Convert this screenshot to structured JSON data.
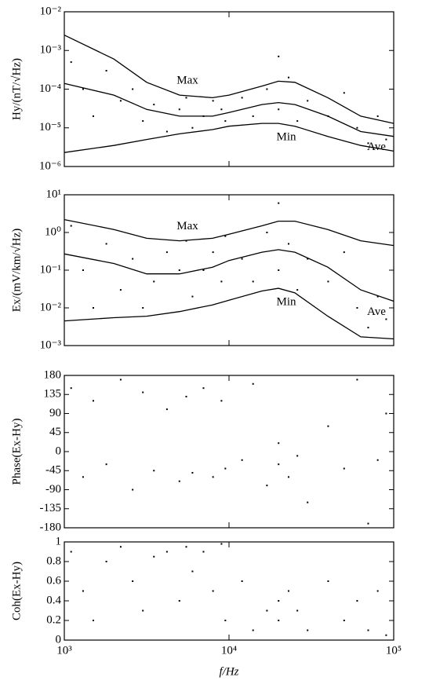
{
  "chart_data": [
    {
      "type": "line",
      "ylabel": "Hy/(nT/√Hz)",
      "log_x": true,
      "log_y": true,
      "xlim": [
        1000,
        100000
      ],
      "xticks": [
        1000,
        10000,
        100000
      ],
      "ylim": [
        1e-06,
        0.01
      ],
      "yticks": [
        {
          "value": 1e-06,
          "label": "10⁻⁶"
        },
        {
          "value": 1e-05,
          "label": "10⁻⁵"
        },
        {
          "value": 0.0001,
          "label": "10⁻⁴"
        },
        {
          "value": 0.001,
          "label": "10⁻³"
        },
        {
          "value": 0.01,
          "label": "10⁻²"
        }
      ],
      "x": [
        1000,
        2000,
        3162,
        5012,
        7943,
        10000,
        15849,
        19953,
        25119,
        39811,
        63096,
        100000
      ],
      "series": [
        {
          "name": "Max",
          "color": "#000000",
          "values": [
            0.0025,
            0.0006,
            0.00015,
            7e-05,
            6e-05,
            7e-05,
            0.00012,
            0.00016,
            0.00015,
            6e-05,
            2e-05,
            1.3e-05
          ]
        },
        {
          "name": "Ave",
          "color": "#000000",
          "values": [
            0.00014,
            7e-05,
            3e-05,
            2e-05,
            2e-05,
            2.5e-05,
            4e-05,
            4.5e-05,
            4e-05,
            2e-05,
            8e-06,
            6e-06
          ]
        },
        {
          "name": "Min",
          "color": "#000000",
          "values": [
            2.3e-06,
            3.5e-06,
            5e-06,
            7e-06,
            9e-06,
            1.1e-05,
            1.3e-05,
            1.3e-05,
            1.1e-05,
            6e-06,
            3.5e-06,
            2.5e-06
          ]
        }
      ],
      "scatter_x": [
        1100,
        1300,
        1500,
        1800,
        2200,
        2600,
        3000,
        3500,
        4200,
        5000,
        5500,
        6000,
        7000,
        8000,
        9000,
        9500,
        12000,
        14000,
        17000,
        20000,
        20000,
        23000,
        26000,
        30000,
        40000,
        50000,
        60000,
        70000,
        80000,
        90000
      ],
      "scatter_y": [
        0.0005,
        0.0001,
        2e-05,
        0.0003,
        5e-05,
        0.0001,
        1.5e-05,
        4e-05,
        8e-06,
        3e-05,
        6e-05,
        1e-05,
        2e-05,
        5e-05,
        3e-05,
        1.5e-05,
        6e-05,
        2e-05,
        0.0001,
        0.0007,
        3e-05,
        0.0002,
        1.5e-05,
        5e-05,
        2e-05,
        8e-05,
        1e-05,
        4e-06,
        2e-05,
        5e-06
      ]
    },
    {
      "type": "line",
      "ylabel": "Ex/(mV/km/√Hz)",
      "log_x": true,
      "log_y": true,
      "xlim": [
        1000,
        100000
      ],
      "xticks": [
        1000,
        10000,
        100000
      ],
      "ylim": [
        0.001,
        10
      ],
      "yticks": [
        {
          "value": 0.001,
          "label": "10⁻³"
        },
        {
          "value": 0.01,
          "label": "10⁻²"
        },
        {
          "value": 0.1,
          "label": "10⁻¹"
        },
        {
          "value": 1,
          "label": "10⁰"
        },
        {
          "value": 10,
          "label": "10¹"
        }
      ],
      "x": [
        1000,
        2000,
        3162,
        5012,
        7943,
        10000,
        15849,
        19953,
        25119,
        39811,
        63096,
        100000
      ],
      "series": [
        {
          "name": "Max",
          "color": "#000000",
          "values": [
            2.2,
            1.2,
            0.7,
            0.6,
            0.7,
            0.9,
            1.5,
            2.0,
            2.0,
            1.2,
            0.6,
            0.45
          ]
        },
        {
          "name": "Ave",
          "color": "#000000",
          "values": [
            0.27,
            0.15,
            0.08,
            0.08,
            0.12,
            0.18,
            0.3,
            0.35,
            0.3,
            0.12,
            0.03,
            0.015
          ]
        },
        {
          "name": "Min",
          "color": "#000000",
          "values": [
            0.0045,
            0.0055,
            0.006,
            0.008,
            0.012,
            0.016,
            0.028,
            0.033,
            0.025,
            0.006,
            0.0017,
            0.0015
          ]
        }
      ],
      "scatter_x": [
        1100,
        1300,
        1500,
        1800,
        2200,
        2600,
        3000,
        3500,
        4200,
        5000,
        5500,
        6000,
        7000,
        8000,
        9000,
        9500,
        12000,
        14000,
        17000,
        20000,
        20000,
        23000,
        26000,
        30000,
        40000,
        50000,
        60000,
        70000,
        80000,
        90000
      ],
      "scatter_y": [
        1.5,
        0.1,
        0.01,
        0.5,
        0.03,
        0.2,
        0.01,
        0.05,
        0.3,
        0.1,
        0.6,
        0.02,
        0.1,
        0.3,
        0.05,
        0.8,
        0.2,
        0.05,
        1.0,
        6,
        0.1,
        0.5,
        0.03,
        0.2,
        0.05,
        0.3,
        0.01,
        0.003,
        0.02,
        0.005
      ]
    },
    {
      "type": "scatter",
      "ylabel": "Phase(Ex-Hy)",
      "log_x": true,
      "log_y": false,
      "xlim": [
        1000,
        100000
      ],
      "xticks": [
        1000,
        10000,
        100000
      ],
      "ylim": [
        -180,
        180
      ],
      "yticks": [
        -180,
        -135,
        -90,
        -45,
        0,
        45,
        90,
        135,
        180
      ],
      "x": [
        1100,
        1300,
        1500,
        1800,
        2200,
        2600,
        3000,
        3500,
        4200,
        5000,
        5500,
        6000,
        7000,
        8000,
        9000,
        9500,
        12000,
        14000,
        17000,
        20000,
        20000,
        23000,
        26000,
        30000,
        40000,
        50000,
        60000,
        70000,
        80000,
        90000
      ],
      "y": [
        150,
        -60,
        120,
        -30,
        170,
        -90,
        140,
        -45,
        100,
        -70,
        130,
        -50,
        150,
        -60,
        120,
        -40,
        -20,
        160,
        -80,
        -30,
        20,
        -60,
        -10,
        -120,
        60,
        -40,
        170,
        -170,
        -20,
        90
      ]
    },
    {
      "type": "scatter",
      "ylabel": "Coh(Ex-Hy)",
      "xlabel": "f/Hz",
      "log_x": true,
      "log_y": false,
      "xlim": [
        1000,
        100000
      ],
      "xticks": [
        {
          "value": 1000,
          "label": "10³"
        },
        {
          "value": 10000,
          "label": "10⁴"
        },
        {
          "value": 100000,
          "label": "10⁵"
        }
      ],
      "ylim": [
        0,
        1
      ],
      "yticks": [
        0,
        0.2,
        0.4,
        0.6,
        0.8,
        1
      ],
      "x": [
        1100,
        1300,
        1500,
        1800,
        2200,
        2600,
        3000,
        3500,
        4200,
        5000,
        5500,
        6000,
        7000,
        8000,
        9000,
        9500,
        12000,
        14000,
        17000,
        20000,
        20000,
        23000,
        26000,
        30000,
        40000,
        50000,
        60000,
        70000,
        80000,
        90000
      ],
      "y": [
        0.9,
        0.5,
        0.2,
        0.8,
        0.95,
        0.6,
        0.3,
        0.85,
        0.9,
        0.4,
        0.95,
        0.7,
        0.9,
        0.5,
        0.98,
        0.2,
        0.6,
        0.1,
        0.3,
        0.4,
        0.2,
        0.5,
        0.3,
        0.1,
        0.6,
        0.2,
        0.4,
        0.1,
        0.5,
        0.05
      ]
    }
  ]
}
